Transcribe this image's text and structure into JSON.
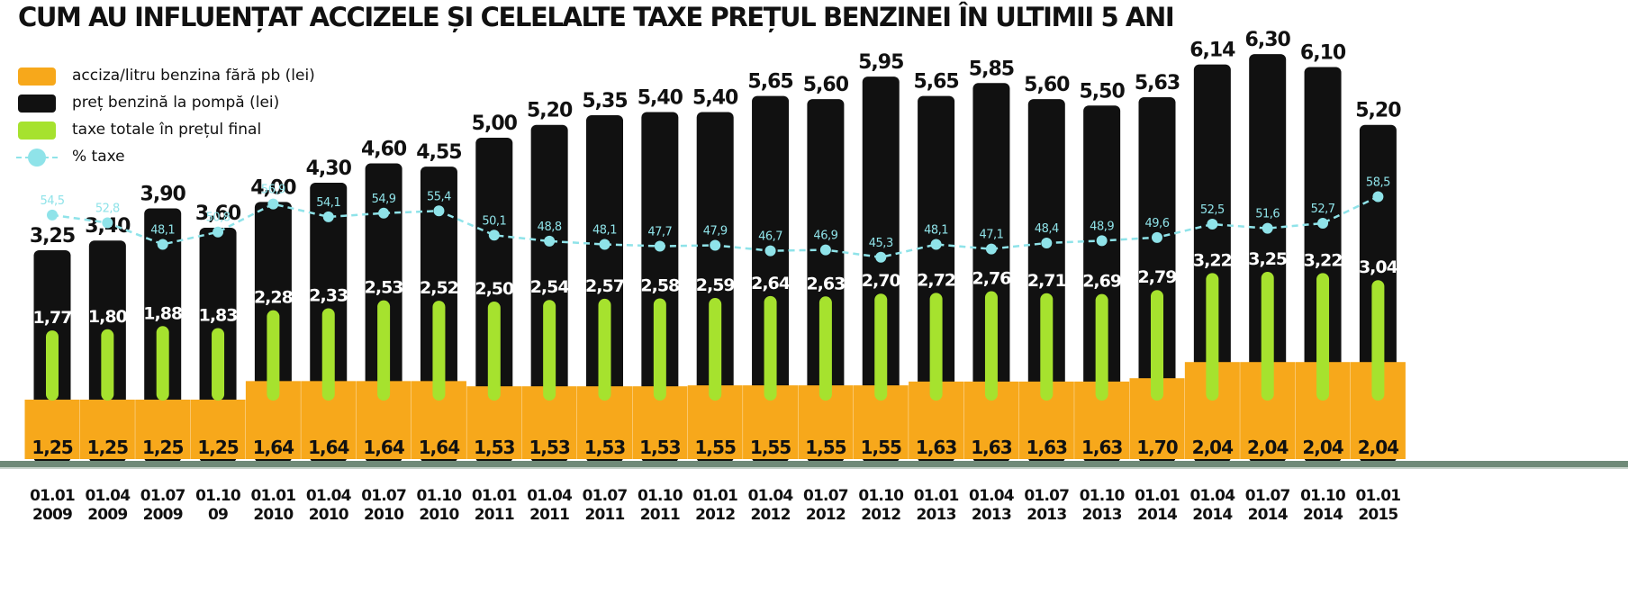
{
  "title": "CUM AU INFLUENȚAT ACCIZELE ȘI CELELALTE TAXE PREȚUL BENZINEI ÎN ULTIMII 5 ANI",
  "colors": {
    "excise": "#f7a81b",
    "price": "#111111",
    "taxes": "#a6e22e",
    "percent": "#8fe3e9",
    "axis": "#6f8a78"
  },
  "legend": [
    {
      "label": "acciza/litru benzina fără pb (lei)",
      "color": "#f7a81b",
      "kind": "swatch"
    },
    {
      "label": "preț benzină la pompă (lei)",
      "color": "#111111",
      "kind": "swatch"
    },
    {
      "label": "taxe totale în prețul final",
      "color": "#a6e22e",
      "kind": "swatch"
    },
    {
      "label": "% taxe",
      "color": "#8fe3e9",
      "kind": "line"
    }
  ],
  "chart_data": {
    "type": "bar",
    "title": "CUM AU INFLUENȚAT ACCIZELE ȘI CELELALTE TAXE PREȚUL BENZINEI ÎN ULTIMII 5 ANI",
    "categories": [
      "01.01 2009",
      "01.04 2009",
      "01.07 2009",
      "01.10 09",
      "01.01 2010",
      "01.04 2010",
      "01.07 2010",
      "01.10 2010",
      "01.01 2011",
      "01.04 2011",
      "01.07 2011",
      "01.10 2011",
      "01.01 2012",
      "01.04 2012",
      "01.07 2012",
      "01.10 2012",
      "01.01 2013",
      "01.04 2013",
      "01.07 2013",
      "01.10 2013",
      "01.01 2014",
      "01.04 2014",
      "01.07 2014",
      "01.10 2014",
      "01.01 2015"
    ],
    "category_lines": [
      [
        "01.01",
        "2009"
      ],
      [
        "01.04",
        "2009"
      ],
      [
        "01.07",
        "2009"
      ],
      [
        "01.10",
        "09"
      ],
      [
        "01.01",
        "2010"
      ],
      [
        "01.04",
        "2010"
      ],
      [
        "01.07",
        "2010"
      ],
      [
        "01.10",
        "2010"
      ],
      [
        "01.01",
        "2011"
      ],
      [
        "01.04",
        "2011"
      ],
      [
        "01.07",
        "2011"
      ],
      [
        "01.10",
        "2011"
      ],
      [
        "01.01",
        "2012"
      ],
      [
        "01.04",
        "2012"
      ],
      [
        "01.07",
        "2012"
      ],
      [
        "01.10",
        "2012"
      ],
      [
        "01.01",
        "2013"
      ],
      [
        "01.04",
        "2013"
      ],
      [
        "01.07",
        "2013"
      ],
      [
        "01.10",
        "2013"
      ],
      [
        "01.01",
        "2014"
      ],
      [
        "01.04",
        "2014"
      ],
      [
        "01.07",
        "2014"
      ],
      [
        "01.10",
        "2014"
      ],
      [
        "01.01",
        "2015"
      ]
    ],
    "series": [
      {
        "name": "acciza/litru benzina fără pb (lei)",
        "kind": "bar",
        "values": [
          1.25,
          1.25,
          1.25,
          1.25,
          1.64,
          1.64,
          1.64,
          1.64,
          1.53,
          1.53,
          1.53,
          1.53,
          1.55,
          1.55,
          1.55,
          1.55,
          1.63,
          1.63,
          1.63,
          1.63,
          1.7,
          2.04,
          2.04,
          2.04,
          2.04
        ],
        "labels": [
          "1,25",
          "1,25",
          "1,25",
          "1,25",
          "1,64",
          "1,64",
          "1,64",
          "1,64",
          "1,53",
          "1,53",
          "1,53",
          "1,53",
          "1,55",
          "1,55",
          "1,55",
          "1,55",
          "1,63",
          "1,63",
          "1,63",
          "1,63",
          "1,70",
          "2,04",
          "2,04",
          "2,04",
          "2,04"
        ]
      },
      {
        "name": "preț benzină la pompă (lei)",
        "kind": "bar",
        "values": [
          3.25,
          3.4,
          3.9,
          3.6,
          4.0,
          4.3,
          4.6,
          4.55,
          5.0,
          5.2,
          5.35,
          5.4,
          5.4,
          5.65,
          5.6,
          5.95,
          5.65,
          5.85,
          5.6,
          5.5,
          5.63,
          6.14,
          6.3,
          6.1,
          5.2
        ],
        "labels": [
          "3,25",
          "3,40",
          "3,90",
          "3,60",
          "4,00",
          "4,30",
          "4,60",
          "4,55",
          "5,00",
          "5,20",
          "5,35",
          "5,40",
          "5,40",
          "5,65",
          "5,60",
          "5,95",
          "5,65",
          "5,85",
          "5,60",
          "5,50",
          "5,63",
          "6,14",
          "6,30",
          "6,10",
          "5,20"
        ]
      },
      {
        "name": "taxe totale în prețul final",
        "kind": "bar",
        "values": [
          1.77,
          1.8,
          1.88,
          1.83,
          2.28,
          2.33,
          2.53,
          2.52,
          2.5,
          2.54,
          2.57,
          2.58,
          2.59,
          2.64,
          2.63,
          2.7,
          2.72,
          2.76,
          2.71,
          2.69,
          2.79,
          3.22,
          3.25,
          3.22,
          3.04
        ],
        "labels": [
          "1,77",
          "1,80",
          "1,88",
          "1,83",
          "2,28",
          "2,33",
          "2,53",
          "2,52",
          "2,50",
          "2,54",
          "2,57",
          "2,58",
          "2,59",
          "2,64",
          "2,63",
          "2,70",
          "2,72",
          "2,76",
          "2,71",
          "2,69",
          "2,79",
          "3,22",
          "3,25",
          "3,22",
          "3,04"
        ]
      },
      {
        "name": "% taxe",
        "kind": "line",
        "values": [
          54.5,
          52.8,
          48.1,
          50.8,
          56.9,
          54.1,
          54.9,
          55.4,
          50.1,
          48.8,
          48.1,
          47.7,
          47.9,
          46.7,
          46.9,
          45.3,
          48.1,
          47.1,
          48.4,
          48.9,
          49.6,
          52.5,
          51.6,
          52.7,
          58.5
        ],
        "labels": [
          "54,5",
          "52,8",
          "48,1",
          "50,8",
          "56,9",
          "54,1",
          "54,9",
          "55,4",
          "50,1",
          "48,8",
          "48,1",
          "47,7",
          "47,9",
          "46,7",
          "46,9",
          "45,3",
          "48,1",
          "47,1",
          "48,4",
          "48,9",
          "49,6",
          "52,5",
          "51,6",
          "52,7",
          "58,5"
        ]
      }
    ]
  }
}
